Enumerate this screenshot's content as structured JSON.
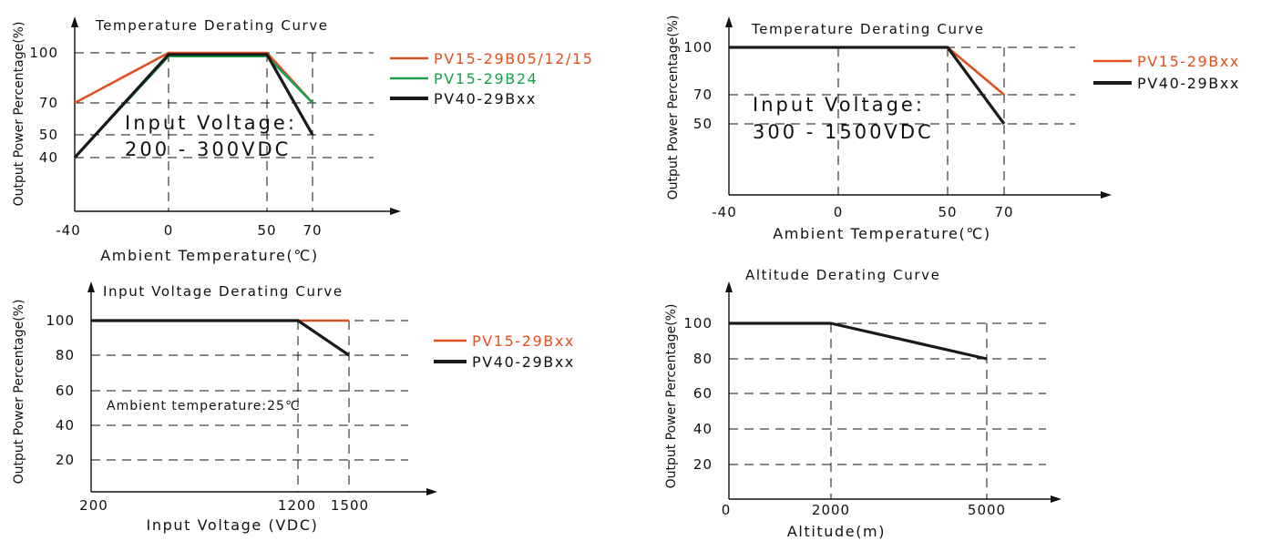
{
  "colors": {
    "orange": "#e2501f",
    "green": "#1a9f4b",
    "black": "#1a1a1a"
  },
  "chart_data": [
    {
      "type": "line",
      "title": "Temperature Derating Curve",
      "ylabel": "Output Power Percentage(%)",
      "xlabel": "Ambient Temperature(℃)",
      "xlim": [
        -40,
        100
      ],
      "ylim": [
        20,
        115
      ],
      "x_ticks": [
        "-40",
        "0",
        "50",
        "70"
      ],
      "y_ticks": [
        "100",
        "70",
        "50",
        "40"
      ],
      "grid": "dashed",
      "legend_position": "right",
      "annotation": [
        "Input Voltage:",
        "200 - 300VDC"
      ],
      "series": [
        {
          "name": "PV15-29B05/12/15",
          "color": "#e2501f",
          "x": [
            -40,
            0,
            50,
            70
          ],
          "y": [
            70,
            100,
            100,
            70
          ]
        },
        {
          "name": "PV15-29B24",
          "color": "#1a9f4b",
          "x": [
            -40,
            0,
            50,
            70
          ],
          "y": [
            40,
            98,
            98,
            70
          ]
        },
        {
          "name": "PV40-29Bxx",
          "color": "#1a1a1a",
          "x": [
            -40,
            0,
            50,
            70
          ],
          "y": [
            40,
            99,
            99,
            50
          ]
        }
      ]
    },
    {
      "type": "line",
      "title": "Temperature Derating Curve",
      "ylabel": "Output Power Percentage(%)",
      "xlabel": "Ambient Temperature(℃)",
      "xlim": [
        -40,
        100
      ],
      "ylim": [
        0,
        115
      ],
      "x_ticks": [
        "-40",
        "0",
        "50",
        "70"
      ],
      "y_ticks": [
        "100",
        "70",
        "50"
      ],
      "grid": "dashed",
      "legend_position": "right",
      "annotation": [
        "Input Voltage:",
        "300 - 1500VDC"
      ],
      "series": [
        {
          "name": "PV15-29Bxx",
          "color": "#e2501f",
          "x": [
            50,
            70
          ],
          "y": [
            100,
            70
          ]
        },
        {
          "name": "PV40-29Bxx",
          "color": "#1a1a1a",
          "x": [
            -40,
            50,
            70
          ],
          "y": [
            100,
            100,
            50
          ]
        }
      ]
    },
    {
      "type": "line",
      "title": "Input Voltage Derating Curve",
      "ylabel": "Output Power Percentage(%)",
      "xlabel": "Input Voltage (VDC)",
      "xlim": [
        200,
        1800
      ],
      "ylim": [
        0,
        120
      ],
      "x_ticks": [
        "200",
        "1200",
        "1500"
      ],
      "y_ticks": [
        "100",
        "80",
        "60",
        "40",
        "20"
      ],
      "grid": "dashed",
      "legend_position": "right",
      "annotation": [
        "Ambient temperature:25℃"
      ],
      "series": [
        {
          "name": "PV15-29Bxx",
          "color": "#e2501f",
          "x": [
            1200,
            1500
          ],
          "y": [
            100,
            100
          ]
        },
        {
          "name": "PV40-29Bxx",
          "color": "#1a1a1a",
          "x": [
            200,
            1200,
            1500
          ],
          "y": [
            100,
            100,
            80
          ]
        }
      ]
    },
    {
      "type": "line",
      "title": "Altitude Derating Curve",
      "ylabel": "Output Power Percentage(%)",
      "xlabel": "Altitude(m)",
      "xlim": [
        0,
        7000
      ],
      "ylim": [
        0,
        120
      ],
      "x_ticks": [
        "0",
        "2000",
        "5000"
      ],
      "y_ticks": [
        "100",
        "80",
        "60",
        "40",
        "20"
      ],
      "grid": "dashed",
      "series": [
        {
          "color": "#1a1a1a",
          "x": [
            0,
            2000,
            5000
          ],
          "y": [
            100,
            100,
            80
          ]
        }
      ]
    }
  ]
}
